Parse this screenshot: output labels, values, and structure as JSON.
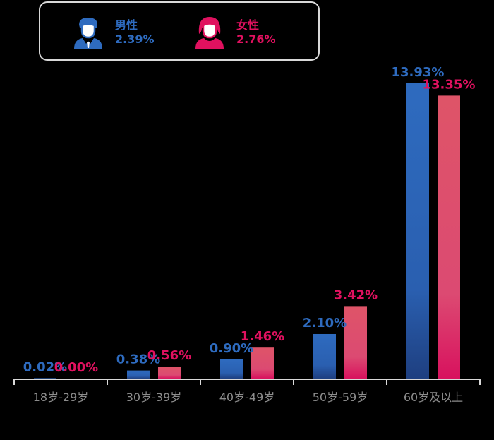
{
  "colors": {
    "male": "#2e6bbf",
    "female": "#e0115f",
    "axis": "#d9d9d9",
    "tick_text": "#8c8c8c"
  },
  "legend": {
    "male": {
      "icon": "male-person-icon",
      "label": "男性",
      "value": "2.39%"
    },
    "female": {
      "icon": "female-person-icon",
      "label": "女性",
      "value": "2.76%"
    }
  },
  "chart_data": {
    "type": "bar",
    "categories": [
      "18岁-29岁",
      "30岁-39岁",
      "40岁-49岁",
      "50岁-59岁",
      "60岁及以上"
    ],
    "series": [
      {
        "name": "男性",
        "values": [
          0.02,
          0.38,
          0.9,
          2.1,
          13.93
        ],
        "labels": [
          "0.02%",
          "0.38%",
          "0.90%",
          "2.10%",
          "13.93%"
        ]
      },
      {
        "name": "女性",
        "values": [
          0.0,
          0.56,
          1.46,
          3.42,
          13.35
        ],
        "labels": [
          "0.00%",
          "0.56%",
          "1.46%",
          "3.42%",
          "13.35%"
        ]
      }
    ],
    "ylim": [
      0,
      13.93
    ],
    "grid": false,
    "legend_position": "top-left"
  }
}
